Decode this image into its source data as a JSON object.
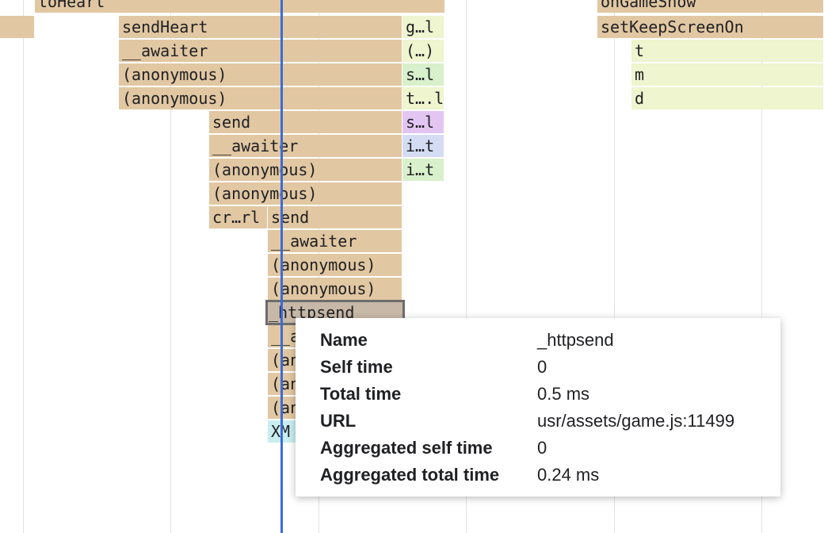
{
  "flame_chart": {
    "bars": [
      {
        "label": "toHeart",
        "color": "tan"
      },
      {
        "label": "sendHeart",
        "color": "tan"
      },
      {
        "label": "g…l",
        "color": "yg"
      },
      {
        "label": "__awaiter",
        "color": "tan"
      },
      {
        "label": "(…)",
        "color": "yg"
      },
      {
        "label": "(anonymous)",
        "color": "tan"
      },
      {
        "label": "s…l",
        "color": "gr"
      },
      {
        "label": "(anonymous)",
        "color": "tan"
      },
      {
        "label": "t….l",
        "color": "yg"
      },
      {
        "label": "send",
        "color": "tan"
      },
      {
        "label": "s…l",
        "color": "pu"
      },
      {
        "label": "__awaiter",
        "color": "tan"
      },
      {
        "label": "i…t",
        "color": "bl"
      },
      {
        "label": "(anonymous)",
        "color": "tan"
      },
      {
        "label": "i…t",
        "color": "gr"
      },
      {
        "label": "(anonymous)",
        "color": "tan"
      },
      {
        "label": "cr…rl",
        "color": "tan"
      },
      {
        "label": "send",
        "color": "tan"
      },
      {
        "label": "__awaiter",
        "color": "tan"
      },
      {
        "label": "(anonymous)",
        "color": "tan"
      },
      {
        "label": "(anonymous)",
        "color": "tan"
      },
      {
        "label": "_httpsend",
        "color": "gy",
        "selected": true
      },
      {
        "label": "__a",
        "color": "tan"
      },
      {
        "label": "(an",
        "color": "tan"
      },
      {
        "label": "(an",
        "color": "tan"
      },
      {
        "label": "(an",
        "color": "tan"
      },
      {
        "label": "XM",
        "color": "cy"
      },
      {
        "label": "onGameShow",
        "color": "tan"
      },
      {
        "label": "setKeepScreenOn",
        "color": "tan"
      },
      {
        "label": "t",
        "color": "yg"
      },
      {
        "label": "m",
        "color": "yg"
      },
      {
        "label": "d",
        "color": "yg"
      },
      {
        "label": "",
        "color": "tan"
      }
    ]
  },
  "tooltip": {
    "rows": [
      {
        "label": "Name",
        "value": "_httpsend"
      },
      {
        "label": "Self time",
        "value": "0"
      },
      {
        "label": "Total time",
        "value": "0.5 ms"
      },
      {
        "label": "URL",
        "value": "usr/assets/game.js:11499"
      },
      {
        "label": "Aggregated self time",
        "value": "0"
      },
      {
        "label": "Aggregated total time",
        "value": "0.24 ms"
      }
    ]
  },
  "colors": {
    "tan": "#e1c7a2",
    "yg": "#eef5cf",
    "gr": "#d8f0cb",
    "pu": "#e3c5f2",
    "bl": "#d3dcf2",
    "gy": "#c8b8a8",
    "cy": "#c9eef0",
    "cursor": "#3b6cd8"
  }
}
